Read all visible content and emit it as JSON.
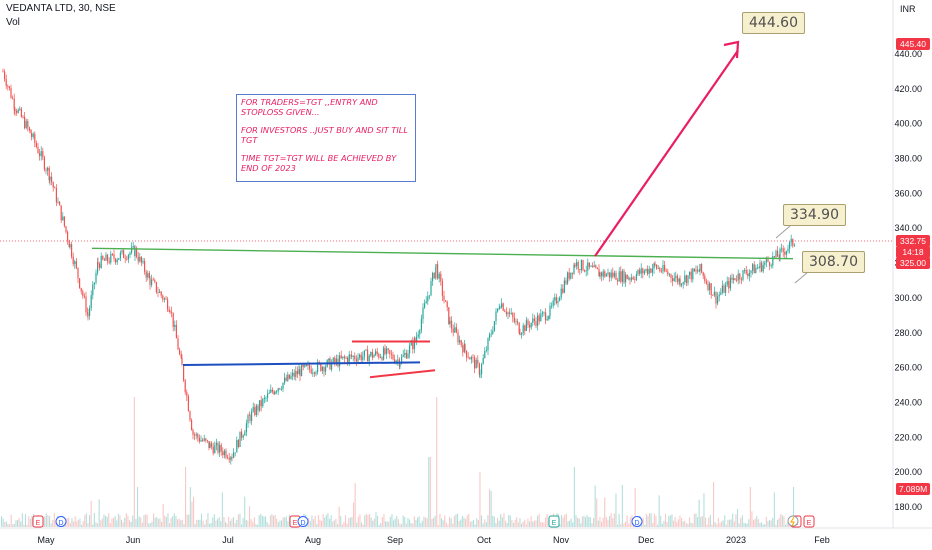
{
  "header": {
    "symbol": "VEDANTA LTD, 30, NSE",
    "volume_label": "Vol",
    "currency": "INR"
  },
  "chart_data": {
    "type": "line",
    "title": "VEDANTA LTD, 30, NSE",
    "y_axis": {
      "ticks": [
        180,
        200,
        220,
        240,
        260,
        280,
        300,
        320,
        340,
        360,
        380,
        400,
        420,
        440
      ],
      "ylim": [
        170,
        455
      ]
    },
    "x_axis": {
      "ticks": [
        "May",
        "Jun",
        "Jul",
        "Aug",
        "Sep",
        "Oct",
        "Nov",
        "Dec",
        "2023",
        "Feb"
      ]
    },
    "series": [
      {
        "values": [
          {
            "x": "May",
            "y": 430
          },
          {
            "x": "May",
            "y": 410
          },
          {
            "x": "May",
            "y": 395
          },
          {
            "x": "May",
            "y": 370
          },
          {
            "x": "May",
            "y": 330
          },
          {
            "x": "May",
            "y": 290
          },
          {
            "x": "Jun",
            "y": 320
          },
          {
            "x": "Jun",
            "y": 327
          },
          {
            "x": "Jun",
            "y": 310
          },
          {
            "x": "Jun",
            "y": 295
          },
          {
            "x": "Jun",
            "y": 260
          },
          {
            "x": "Jun",
            "y": 222
          },
          {
            "x": "Jul",
            "y": 215
          },
          {
            "x": "Jul",
            "y": 210
          },
          {
            "x": "Jul",
            "y": 232
          },
          {
            "x": "Jul",
            "y": 248
          },
          {
            "x": "Aug",
            "y": 258
          },
          {
            "x": "Aug",
            "y": 262
          },
          {
            "x": "Aug",
            "y": 266
          },
          {
            "x": "Sep",
            "y": 268
          },
          {
            "x": "Sep",
            "y": 264
          },
          {
            "x": "Sep",
            "y": 275
          },
          {
            "x": "Sep",
            "y": 318
          },
          {
            "x": "Sep",
            "y": 285
          },
          {
            "x": "Oct",
            "y": 270
          },
          {
            "x": "Oct",
            "y": 258
          },
          {
            "x": "Oct",
            "y": 298
          },
          {
            "x": "Oct",
            "y": 282
          },
          {
            "x": "Oct",
            "y": 292
          },
          {
            "x": "Nov",
            "y": 320
          },
          {
            "x": "Nov",
            "y": 314
          },
          {
            "x": "Nov",
            "y": 312
          },
          {
            "x": "Dec",
            "y": 318
          },
          {
            "x": "Dec",
            "y": 310
          },
          {
            "x": "Dec",
            "y": 316
          },
          {
            "x": "Dec",
            "y": 300
          },
          {
            "x": "2023",
            "y": 312
          },
          {
            "x": "2023",
            "y": 318
          },
          {
            "x": "2023",
            "y": 325
          },
          {
            "x": "2023",
            "y": 332.75
          }
        ]
      }
    ],
    "price_tags": [
      {
        "label": "445.40",
        "color": "#f23645"
      },
      {
        "label": "332.75",
        "color": "#f23645"
      },
      {
        "label": "14:18",
        "color": "#f23645"
      },
      {
        "label": "325.00",
        "color": "#f23645"
      },
      {
        "label": "7.089M",
        "color": "#f23645"
      }
    ],
    "event_markers": [
      "E",
      "D",
      "E",
      "D",
      "E",
      "D",
      "E",
      "D",
      "E"
    ],
    "annotations": {
      "targets": [
        "444.60",
        "334.90",
        "308.70"
      ],
      "note_lines": [
        "FOR TRADERS=TGT ,,ENTRY AND STOPLOSS GIVEN...",
        "FOR INVESTORS ..JUST BUY AND SIT TILL TGT",
        "TIME TGT=TGT WILL BE ACHIEVED BY END OF 2023"
      ]
    },
    "colors": {
      "up": "#26a69a",
      "down": "#ef5350",
      "resistance_line": "#4caf50",
      "support_line": "#1e4fbf",
      "channel_lines": "#f23645",
      "target_arrow": "#e91e63",
      "note_text": "#e91e63"
    },
    "grid": false
  }
}
